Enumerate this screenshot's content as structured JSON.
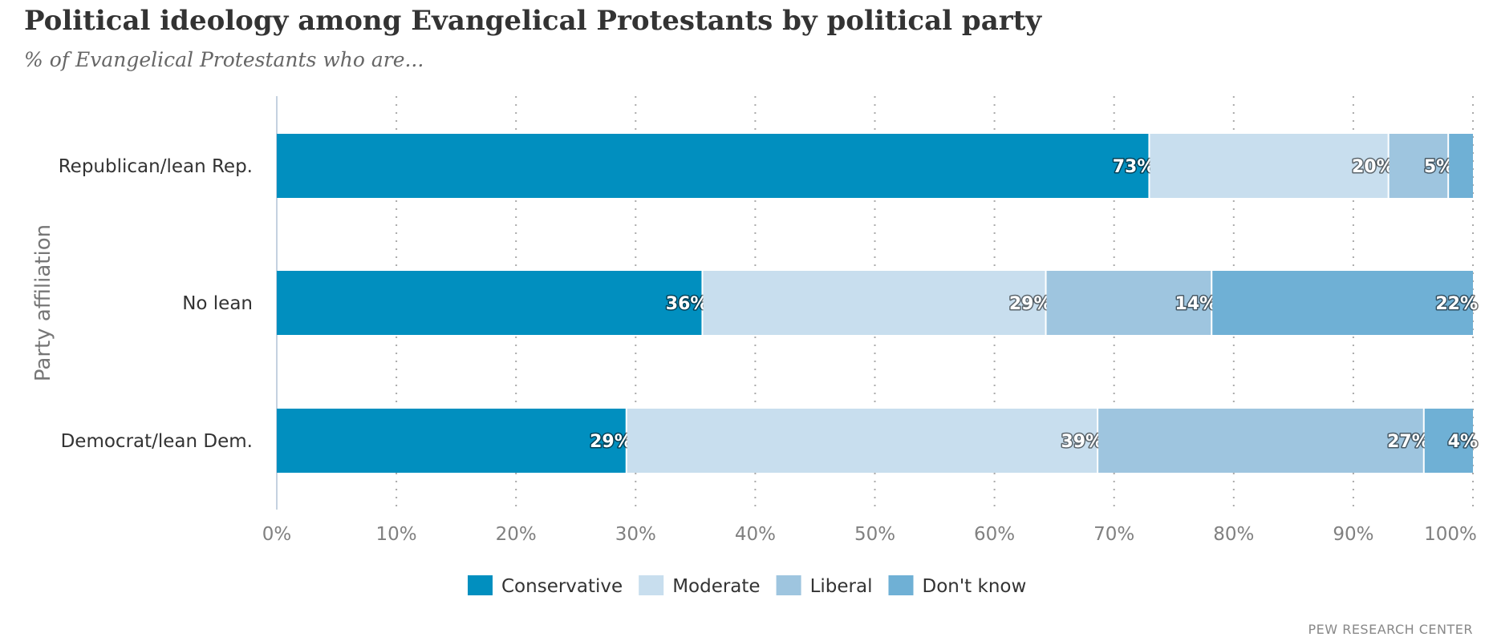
{
  "chart_data": {
    "type": "bar",
    "orientation": "horizontal",
    "stacked": true,
    "title": "Political ideology among Evangelical Protestants by political party",
    "subtitle": "% of Evangelical Protestants who are...",
    "xlabel": "",
    "ylabel": "Party affiliation",
    "xlim": [
      0,
      100
    ],
    "x_ticks": [
      "0%",
      "10%",
      "20%",
      "30%",
      "40%",
      "50%",
      "60%",
      "70%",
      "80%",
      "90%",
      "100%"
    ],
    "grid": true,
    "legend_position": "bottom",
    "categories": [
      "Republican/lean Rep.",
      "No lean",
      "Democrat/lean Dem."
    ],
    "series": [
      {
        "name": "Conservative",
        "color": "#018fbf",
        "values": [
          73,
          36,
          29
        ],
        "labels": [
          "73%",
          "36%",
          "29%"
        ]
      },
      {
        "name": "Moderate",
        "color": "#c8deee",
        "values": [
          20,
          29,
          39
        ],
        "labels": [
          "20%",
          "29%",
          "39%"
        ]
      },
      {
        "name": "Liberal",
        "color": "#9ec5df",
        "values": [
          5,
          14,
          27
        ],
        "labels": [
          "5%",
          "14%",
          "27%"
        ]
      },
      {
        "name": "Don't know",
        "color": "#6fb0d5",
        "values": [
          2,
          22,
          4
        ],
        "labels": [
          "",
          "22%",
          "4%"
        ]
      }
    ]
  },
  "source": "PEW RESEARCH CENTER"
}
